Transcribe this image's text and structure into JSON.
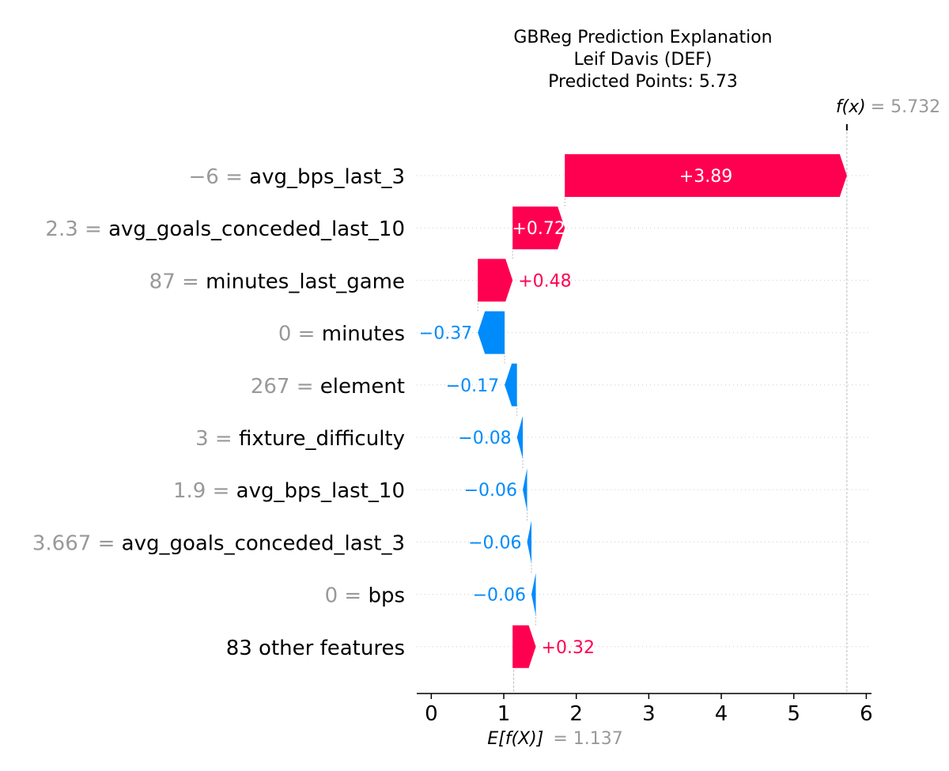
{
  "chart_data": {
    "type": "waterfall",
    "title": [
      "GBReg Prediction Explanation",
      "Leif Davis (DEF)",
      "Predicted Points: 5.73"
    ],
    "base_value": 1.137,
    "base_value_label": "E[f(X)]",
    "base_value_text": "= 1.137",
    "output_value": 5.732,
    "output_value_label": "f(x)",
    "output_value_text": "= 5.732",
    "xlim": [
      -0.2,
      6.05
    ],
    "xticks": [
      0,
      1,
      2,
      3,
      4,
      5,
      6
    ],
    "positive_color": "#ff0051",
    "negative_color": "#008bfb",
    "features": [
      {
        "value": "−6",
        "name": "avg_bps_last_3",
        "contribution": 3.89,
        "label": "+3.89"
      },
      {
        "value": "2.3",
        "name": "avg_goals_conceded_last_10",
        "contribution": 0.72,
        "label": "+0.72"
      },
      {
        "value": "87",
        "name": "minutes_last_game",
        "contribution": 0.48,
        "label": "+0.48"
      },
      {
        "value": "0",
        "name": "minutes",
        "contribution": -0.37,
        "label": "−0.37"
      },
      {
        "value": "267",
        "name": "element",
        "contribution": -0.17,
        "label": "−0.17"
      },
      {
        "value": "3",
        "name": "fixture_difficulty",
        "contribution": -0.08,
        "label": "−0.08"
      },
      {
        "value": "1.9",
        "name": "avg_bps_last_10",
        "contribution": -0.06,
        "label": "−0.06"
      },
      {
        "value": "3.667",
        "name": "avg_goals_conceded_last_3",
        "contribution": -0.06,
        "label": "−0.06"
      },
      {
        "value": "0",
        "name": "bps",
        "contribution": -0.06,
        "label": "−0.06"
      },
      {
        "value": "",
        "name": "83 other features",
        "contribution": 0.32,
        "label": "+0.32"
      }
    ]
  }
}
